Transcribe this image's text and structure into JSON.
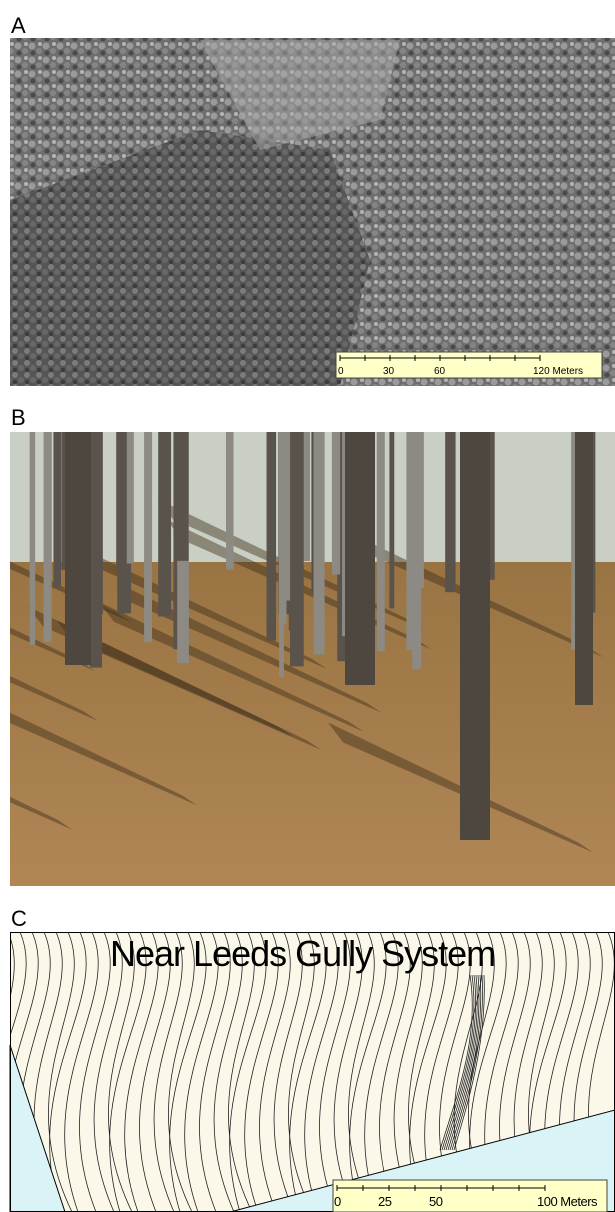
{
  "panels": [
    {
      "label": "A",
      "scale_bar": [
        "0",
        "30",
        "60",
        "120 Meters"
      ]
    },
    {
      "label": "B"
    },
    {
      "label": "C",
      "title": "Near Leeds Gully System",
      "scale_bar": [
        "0",
        "25",
        "50",
        "100 Meters"
      ]
    }
  ]
}
